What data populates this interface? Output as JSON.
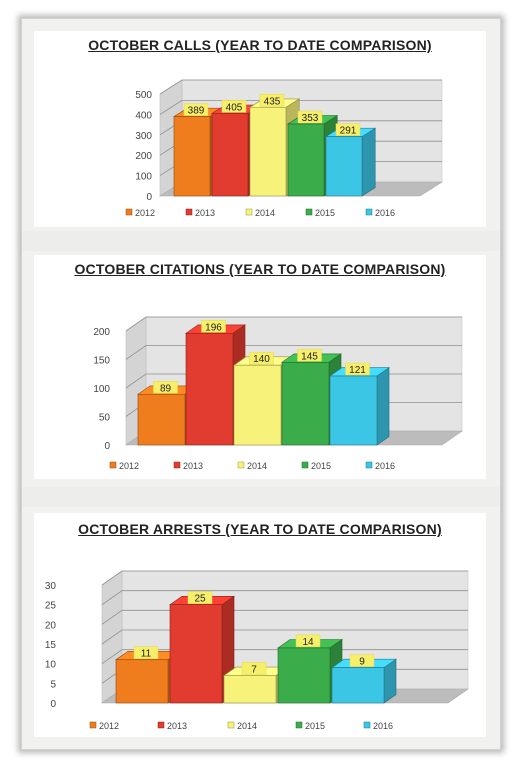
{
  "colors": [
    "#ef7d1e",
    "#e23b2f",
    "#f6f27a",
    "#3aad4a",
    "#3cc6e6"
  ],
  "chart_data": [
    {
      "type": "bar",
      "title": "OCTOBER CALLS (YEAR TO DATE COMPARISON)",
      "categories": [
        "2012",
        "2013",
        "2014",
        "2015",
        "2016"
      ],
      "values": [
        389,
        405,
        435,
        353,
        291
      ],
      "y_ticks": [
        "0",
        "100",
        "200",
        "300",
        "400",
        "500"
      ],
      "ylim": [
        0,
        500
      ],
      "legend": [
        "2012",
        "2013",
        "2014",
        "2015",
        "2016"
      ],
      "legend_position": "bottom",
      "grid": true
    },
    {
      "type": "bar",
      "title": "OCTOBER CITATIONS (YEAR TO DATE COMPARISON)",
      "categories": [
        "2012",
        "2013",
        "2014",
        "2015",
        "2016"
      ],
      "values": [
        89,
        196,
        140,
        145,
        121
      ],
      "y_ticks": [
        "0",
        "50",
        "100",
        "150",
        "200"
      ],
      "ylim": [
        0,
        200
      ],
      "legend": [
        "2012",
        "2013",
        "2014",
        "2015",
        "2016"
      ],
      "legend_position": "bottom",
      "grid": true
    },
    {
      "type": "bar",
      "title": "OCTOBER ARRESTS (YEAR TO DATE COMPARISON)",
      "categories": [
        "2012",
        "2013",
        "2014",
        "2015",
        "2016"
      ],
      "values": [
        11,
        25,
        7,
        14,
        9
      ],
      "y_ticks": [
        "0",
        "5",
        "10",
        "15",
        "20",
        "25",
        "30"
      ],
      "ylim": [
        0,
        30
      ],
      "legend": [
        "2012",
        "2013",
        "2014",
        "2015",
        "2016"
      ],
      "legend_position": "bottom",
      "grid": true
    }
  ]
}
